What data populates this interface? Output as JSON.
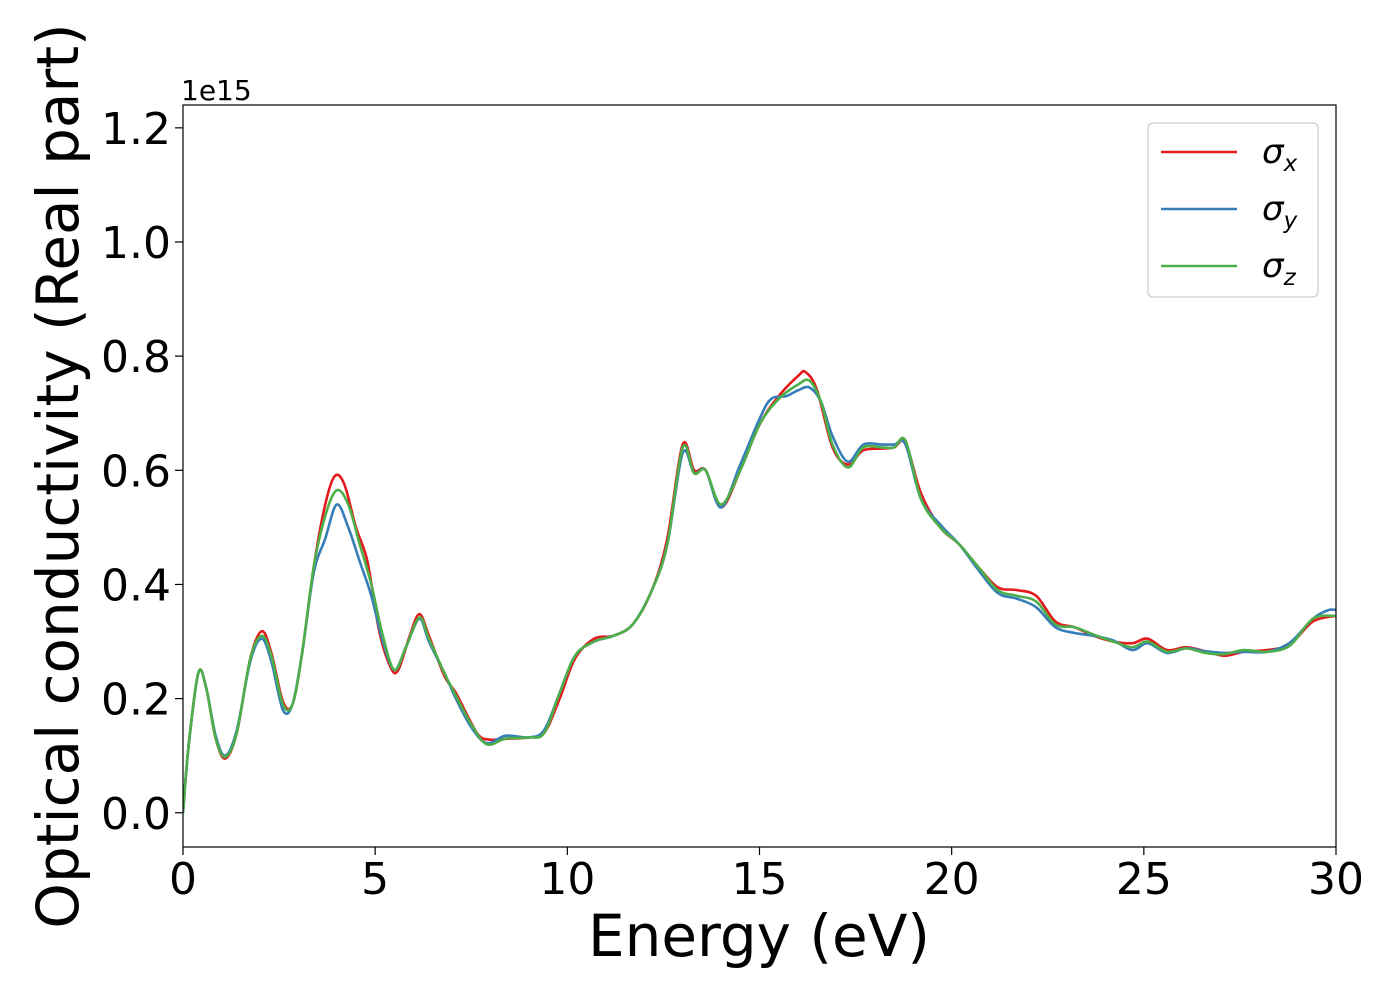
{
  "chart_data": {
    "type": "line",
    "title": "",
    "xlabel": "Energy (eV)",
    "ylabel": "Optical conductivity (Real part)",
    "y_offset_label": "1e15",
    "xlim": [
      0,
      30
    ],
    "ylim": [
      -0.06,
      1.24
    ],
    "xticks": [
      0,
      5,
      10,
      15,
      20,
      25,
      30
    ],
    "xtick_labels": [
      "0",
      "5",
      "10",
      "15",
      "20",
      "25",
      "30"
    ],
    "yticks": [
      0.0,
      0.2,
      0.4,
      0.6,
      0.8,
      1.0,
      1.2
    ],
    "ytick_labels": [
      "0.0",
      "0.2",
      "0.4",
      "0.6",
      "0.8",
      "1.0",
      "1.2"
    ],
    "grid": false,
    "legend_position": "top-right",
    "series": [
      {
        "name": "σ",
        "subscript": "x",
        "color": "#e41a1c",
        "points": [
          [
            0,
            0
          ],
          [
            0.15,
            0.12
          ],
          [
            0.4,
            0.245
          ],
          [
            0.6,
            0.22
          ],
          [
            0.85,
            0.13
          ],
          [
            1.1,
            0.095
          ],
          [
            1.4,
            0.14
          ],
          [
            1.75,
            0.27
          ],
          [
            2.05,
            0.318
          ],
          [
            2.3,
            0.28
          ],
          [
            2.6,
            0.195
          ],
          [
            2.85,
            0.19
          ],
          [
            3.1,
            0.28
          ],
          [
            3.4,
            0.43
          ],
          [
            3.7,
            0.54
          ],
          [
            3.95,
            0.59
          ],
          [
            4.2,
            0.575
          ],
          [
            4.5,
            0.5
          ],
          [
            4.8,
            0.44
          ],
          [
            5.1,
            0.32
          ],
          [
            5.4,
            0.255
          ],
          [
            5.6,
            0.25
          ],
          [
            5.9,
            0.31
          ],
          [
            6.15,
            0.348
          ],
          [
            6.4,
            0.31
          ],
          [
            6.8,
            0.24
          ],
          [
            7.1,
            0.21
          ],
          [
            7.4,
            0.17
          ],
          [
            7.7,
            0.135
          ],
          [
            8.0,
            0.128
          ],
          [
            8.5,
            0.13
          ],
          [
            9.0,
            0.132
          ],
          [
            9.4,
            0.14
          ],
          [
            9.8,
            0.2
          ],
          [
            10.2,
            0.27
          ],
          [
            10.7,
            0.305
          ],
          [
            11.2,
            0.31
          ],
          [
            11.7,
            0.33
          ],
          [
            12.2,
            0.39
          ],
          [
            12.6,
            0.48
          ],
          [
            13.0,
            0.645
          ],
          [
            13.3,
            0.6
          ],
          [
            13.6,
            0.6
          ],
          [
            14.0,
            0.535
          ],
          [
            14.5,
            0.6
          ],
          [
            15.0,
            0.68
          ],
          [
            15.5,
            0.73
          ],
          [
            16.0,
            0.765
          ],
          [
            16.2,
            0.772
          ],
          [
            16.5,
            0.74
          ],
          [
            16.9,
            0.64
          ],
          [
            17.3,
            0.61
          ],
          [
            17.7,
            0.635
          ],
          [
            18.2,
            0.638
          ],
          [
            18.5,
            0.64
          ],
          [
            18.8,
            0.648
          ],
          [
            19.2,
            0.56
          ],
          [
            19.7,
            0.5
          ],
          [
            20.2,
            0.47
          ],
          [
            20.7,
            0.43
          ],
          [
            21.2,
            0.395
          ],
          [
            21.7,
            0.39
          ],
          [
            22.2,
            0.38
          ],
          [
            22.7,
            0.335
          ],
          [
            23.2,
            0.325
          ],
          [
            23.7,
            0.31
          ],
          [
            24.2,
            0.3
          ],
          [
            24.7,
            0.297
          ],
          [
            25.1,
            0.305
          ],
          [
            25.6,
            0.285
          ],
          [
            26.1,
            0.29
          ],
          [
            26.6,
            0.283
          ],
          [
            27.1,
            0.275
          ],
          [
            27.6,
            0.282
          ],
          [
            28.2,
            0.285
          ],
          [
            28.8,
            0.295
          ],
          [
            29.4,
            0.335
          ],
          [
            30,
            0.345
          ]
        ]
      },
      {
        "name": "σ",
        "subscript": "y",
        "color": "#377eb8",
        "points": [
          [
            0,
            0
          ],
          [
            0.15,
            0.12
          ],
          [
            0.4,
            0.245
          ],
          [
            0.6,
            0.22
          ],
          [
            0.85,
            0.135
          ],
          [
            1.1,
            0.1
          ],
          [
            1.4,
            0.145
          ],
          [
            1.75,
            0.265
          ],
          [
            2.05,
            0.305
          ],
          [
            2.3,
            0.265
          ],
          [
            2.6,
            0.18
          ],
          [
            2.85,
            0.19
          ],
          [
            3.1,
            0.28
          ],
          [
            3.4,
            0.42
          ],
          [
            3.7,
            0.48
          ],
          [
            4.0,
            0.54
          ],
          [
            4.3,
            0.5
          ],
          [
            4.6,
            0.44
          ],
          [
            4.9,
            0.38
          ],
          [
            5.2,
            0.3
          ],
          [
            5.5,
            0.25
          ],
          [
            5.8,
            0.29
          ],
          [
            6.15,
            0.34
          ],
          [
            6.4,
            0.3
          ],
          [
            6.8,
            0.245
          ],
          [
            7.1,
            0.2
          ],
          [
            7.5,
            0.15
          ],
          [
            7.9,
            0.122
          ],
          [
            8.4,
            0.135
          ],
          [
            9.0,
            0.132
          ],
          [
            9.4,
            0.145
          ],
          [
            9.8,
            0.21
          ],
          [
            10.2,
            0.275
          ],
          [
            10.7,
            0.3
          ],
          [
            11.2,
            0.31
          ],
          [
            11.7,
            0.33
          ],
          [
            12.2,
            0.39
          ],
          [
            12.6,
            0.47
          ],
          [
            13.0,
            0.63
          ],
          [
            13.3,
            0.595
          ],
          [
            13.6,
            0.6
          ],
          [
            14.0,
            0.535
          ],
          [
            14.5,
            0.61
          ],
          [
            15.0,
            0.69
          ],
          [
            15.3,
            0.725
          ],
          [
            15.7,
            0.73
          ],
          [
            16.0,
            0.74
          ],
          [
            16.3,
            0.745
          ],
          [
            16.6,
            0.72
          ],
          [
            16.9,
            0.66
          ],
          [
            17.3,
            0.615
          ],
          [
            17.7,
            0.645
          ],
          [
            18.2,
            0.645
          ],
          [
            18.5,
            0.645
          ],
          [
            18.8,
            0.645
          ],
          [
            19.2,
            0.55
          ],
          [
            19.7,
            0.505
          ],
          [
            20.2,
            0.47
          ],
          [
            20.7,
            0.425
          ],
          [
            21.2,
            0.385
          ],
          [
            21.7,
            0.375
          ],
          [
            22.2,
            0.36
          ],
          [
            22.7,
            0.325
          ],
          [
            23.2,
            0.315
          ],
          [
            23.7,
            0.31
          ],
          [
            24.2,
            0.302
          ],
          [
            24.7,
            0.285
          ],
          [
            25.1,
            0.297
          ],
          [
            25.6,
            0.28
          ],
          [
            26.1,
            0.288
          ],
          [
            26.6,
            0.283
          ],
          [
            27.1,
            0.28
          ],
          [
            27.6,
            0.282
          ],
          [
            28.2,
            0.282
          ],
          [
            28.8,
            0.298
          ],
          [
            29.4,
            0.34
          ],
          [
            29.8,
            0.355
          ],
          [
            30,
            0.355
          ]
        ]
      },
      {
        "name": "σ",
        "subscript": "z",
        "color": "#4daf4a",
        "points": [
          [
            0,
            0
          ],
          [
            0.15,
            0.12
          ],
          [
            0.4,
            0.245
          ],
          [
            0.6,
            0.22
          ],
          [
            0.85,
            0.13
          ],
          [
            1.1,
            0.098
          ],
          [
            1.4,
            0.14
          ],
          [
            1.75,
            0.27
          ],
          [
            2.05,
            0.31
          ],
          [
            2.3,
            0.275
          ],
          [
            2.6,
            0.19
          ],
          [
            2.85,
            0.19
          ],
          [
            3.1,
            0.28
          ],
          [
            3.4,
            0.43
          ],
          [
            3.7,
            0.52
          ],
          [
            4.0,
            0.565
          ],
          [
            4.3,
            0.54
          ],
          [
            4.6,
            0.47
          ],
          [
            4.9,
            0.4
          ],
          [
            5.2,
            0.31
          ],
          [
            5.5,
            0.25
          ],
          [
            5.8,
            0.29
          ],
          [
            6.15,
            0.342
          ],
          [
            6.4,
            0.305
          ],
          [
            6.8,
            0.245
          ],
          [
            7.1,
            0.205
          ],
          [
            7.5,
            0.155
          ],
          [
            7.9,
            0.12
          ],
          [
            8.4,
            0.13
          ],
          [
            9.0,
            0.132
          ],
          [
            9.4,
            0.14
          ],
          [
            9.8,
            0.21
          ],
          [
            10.2,
            0.275
          ],
          [
            10.7,
            0.3
          ],
          [
            11.2,
            0.31
          ],
          [
            11.7,
            0.33
          ],
          [
            12.2,
            0.39
          ],
          [
            12.6,
            0.47
          ],
          [
            13.0,
            0.64
          ],
          [
            13.3,
            0.595
          ],
          [
            13.6,
            0.6
          ],
          [
            14.0,
            0.54
          ],
          [
            14.5,
            0.6
          ],
          [
            15.0,
            0.68
          ],
          [
            15.5,
            0.725
          ],
          [
            16.0,
            0.75
          ],
          [
            16.3,
            0.757
          ],
          [
            16.6,
            0.72
          ],
          [
            16.9,
            0.645
          ],
          [
            17.3,
            0.605
          ],
          [
            17.7,
            0.64
          ],
          [
            18.2,
            0.64
          ],
          [
            18.5,
            0.64
          ],
          [
            18.8,
            0.652
          ],
          [
            19.2,
            0.55
          ],
          [
            19.7,
            0.5
          ],
          [
            20.2,
            0.47
          ],
          [
            20.7,
            0.43
          ],
          [
            21.2,
            0.39
          ],
          [
            21.7,
            0.38
          ],
          [
            22.2,
            0.37
          ],
          [
            22.7,
            0.33
          ],
          [
            23.2,
            0.325
          ],
          [
            23.7,
            0.312
          ],
          [
            24.2,
            0.3
          ],
          [
            24.7,
            0.29
          ],
          [
            25.1,
            0.3
          ],
          [
            25.6,
            0.282
          ],
          [
            26.1,
            0.288
          ],
          [
            26.6,
            0.28
          ],
          [
            27.1,
            0.278
          ],
          [
            27.6,
            0.285
          ],
          [
            28.2,
            0.282
          ],
          [
            28.8,
            0.293
          ],
          [
            29.4,
            0.34
          ],
          [
            30,
            0.345
          ]
        ]
      }
    ]
  }
}
